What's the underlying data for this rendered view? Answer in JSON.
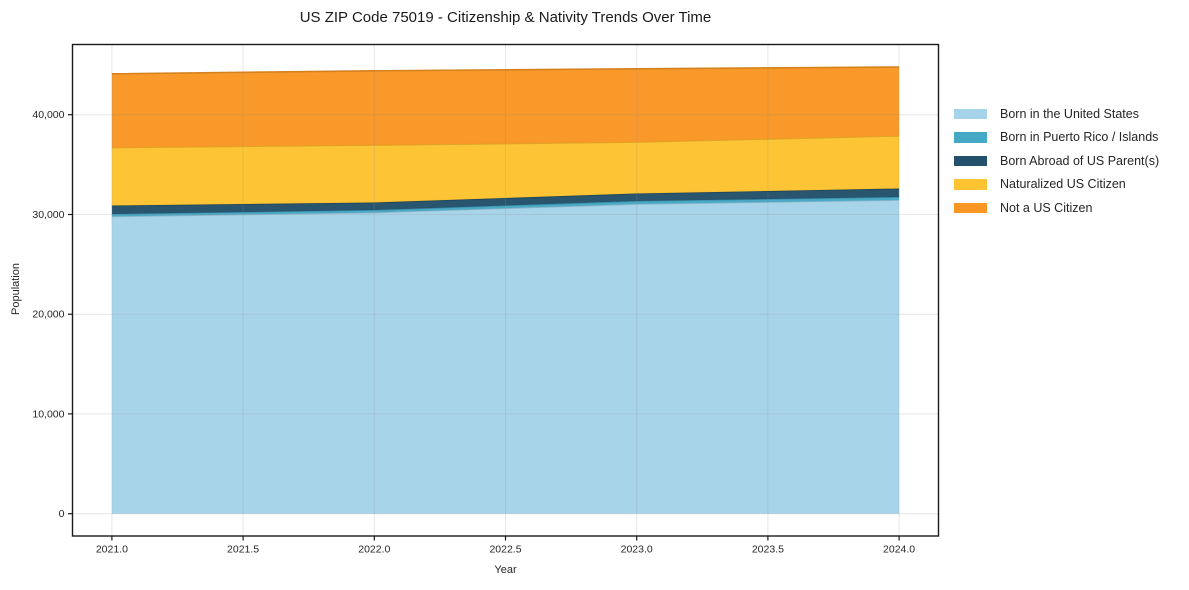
{
  "chart_data": {
    "type": "area",
    "stacked": true,
    "title": "US ZIP Code 75019 - Citizenship & Nativity Trends Over Time",
    "xlabel": "Year",
    "ylabel": "Population",
    "x": [
      2021,
      2022,
      2023,
      2024
    ],
    "series": [
      {
        "name": "Born in the United States",
        "color": "#a5d3e9",
        "values": [
          29800,
          30200,
          31050,
          31450
        ]
      },
      {
        "name": "Born in Puerto Rico / Islands",
        "color": "#45a8c5",
        "values": [
          250,
          250,
          300,
          300
        ]
      },
      {
        "name": "Born Abroad of US Parent(s)",
        "color": "#23506a",
        "values": [
          850,
          750,
          750,
          850
        ]
      },
      {
        "name": "Naturalized US Citizen",
        "color": "#fdc330",
        "values": [
          5800,
          5750,
          5150,
          5280
        ]
      },
      {
        "name": "Not a US Citizen",
        "color": "#f89623",
        "values": [
          7400,
          7450,
          7350,
          6900
        ]
      }
    ],
    "totals": [
      44100,
      44400,
      44600,
      44780
    ],
    "xlim": [
      2020.85,
      2024.15
    ],
    "ylim": [
      -2240,
      47040
    ],
    "xticks": {
      "values": [
        2021,
        2021.5,
        2022,
        2022.5,
        2023,
        2023.5,
        2024
      ],
      "labels": [
        "2021.0",
        "2021.5",
        "2022.0",
        "2022.5",
        "2023.0",
        "2023.5",
        "2024.0"
      ]
    },
    "yticks": {
      "values": [
        0,
        10000,
        20000,
        30000,
        40000
      ],
      "labels": [
        "0",
        "10,000",
        "20,000",
        "30,000",
        "40,000"
      ]
    },
    "grid": true,
    "legend_position": "right",
    "background_color": "#ffffff",
    "frame_color": "#1a1a1a"
  }
}
